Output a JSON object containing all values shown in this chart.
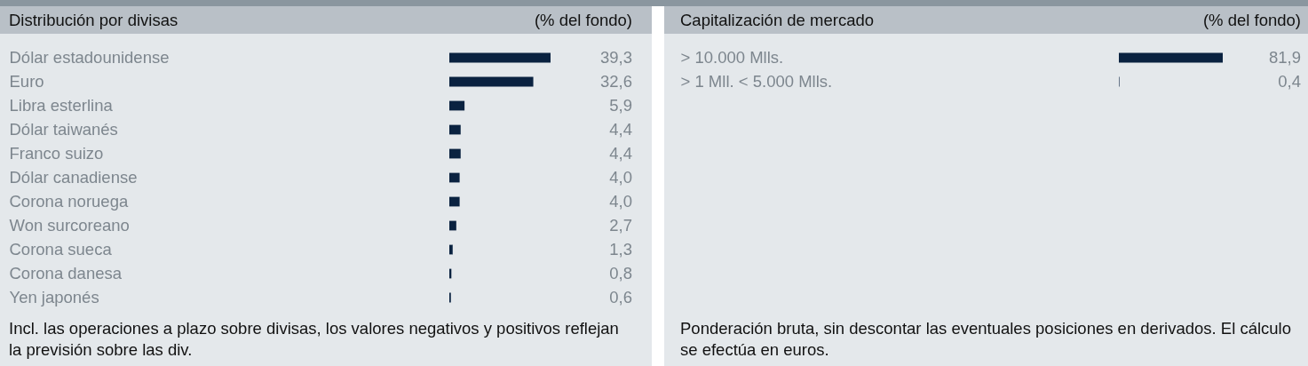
{
  "chart_data": [
    {
      "type": "bar",
      "orientation": "horizontal",
      "title": "Distribución por divisas",
      "subtitle": "(% del fondo)",
      "categories": [
        "Dólar estadounidense",
        "Euro",
        "Libra esterlina",
        "Dólar taiwanés",
        "Franco suizo",
        "Dólar canadiense",
        "Corona noruega",
        "Won surcoreano",
        "Corona sueca",
        "Corona danesa",
        "Yen japonés"
      ],
      "values": [
        39.3,
        32.6,
        5.9,
        4.4,
        4.4,
        4.0,
        4.0,
        2.7,
        1.3,
        0.8,
        0.6
      ],
      "value_labels": [
        "39,3",
        "32,6",
        "5,9",
        "4,4",
        "4,4",
        "4,0",
        "4,0",
        "2,7",
        "1,3",
        "0,8",
        "0,6"
      ],
      "color": "#0a2240",
      "tick_labels": "y",
      "annotations": [
        "Incl. las operaciones a plazo sobre divisas, los valores negativos y positivos reflejan la previsión sobre las div."
      ]
    },
    {
      "type": "bar",
      "orientation": "horizontal",
      "title": "Capitalización de mercado",
      "subtitle": "(% del fondo)",
      "categories": [
        "> 10.000 Mlls.",
        "> 1 Mll. < 5.000 Mlls."
      ],
      "values": [
        81.9,
        0.4
      ],
      "value_labels": [
        "81,9",
        "0,4"
      ],
      "color": "#0a2240",
      "tick_labels": "y",
      "annotations": [
        "Ponderación bruta, sin descontar las eventuales posiciones en derivados. El cálculo se efectúa en euros."
      ]
    }
  ]
}
